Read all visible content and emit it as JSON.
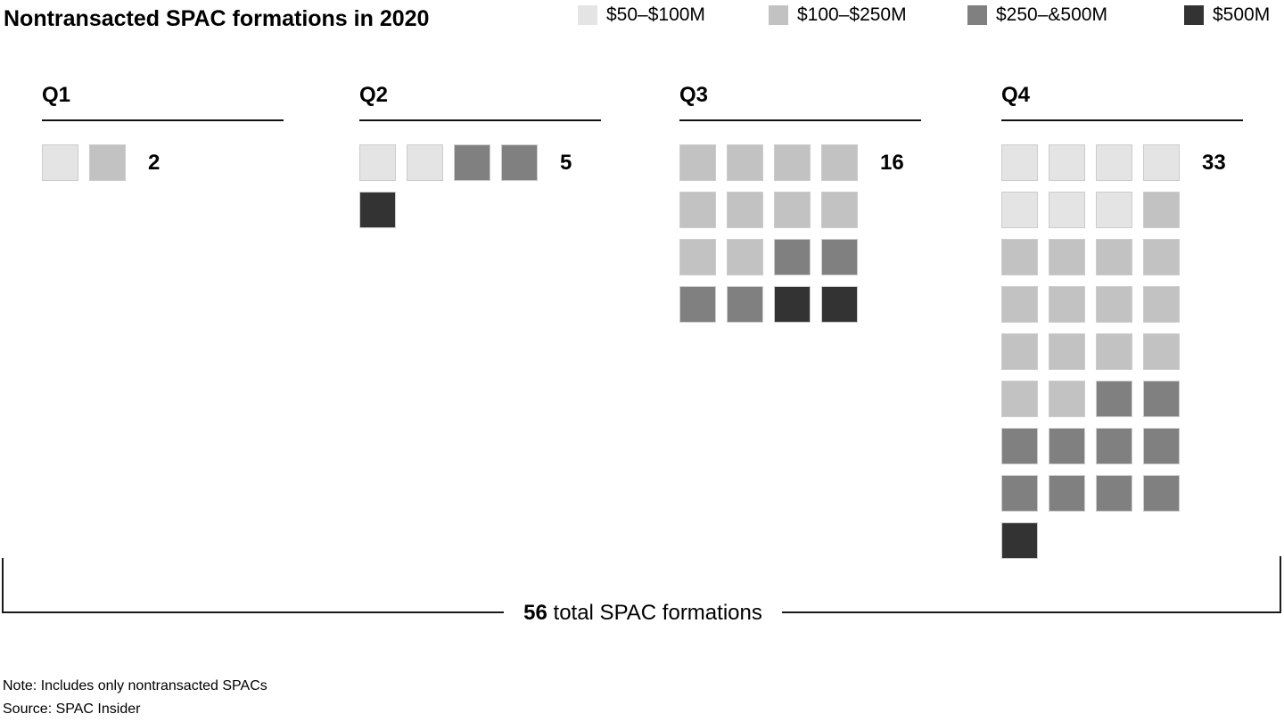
{
  "title": "Nontransacted SPAC formations in 2020",
  "chart_data": {
    "type": "waffle",
    "title": "Nontransacted SPAC formations in 2020",
    "legend_position": "top-right",
    "categories": [
      "$50–$100M",
      "$100–$250M",
      "$250–&500M",
      "$500M"
    ],
    "category_colors": [
      "#e4e4e4",
      "#c2c2c2",
      "#808080",
      "#333333"
    ],
    "columns_per_row": 4,
    "quarters": [
      {
        "label": "Q1",
        "count": "2",
        "cells": [
          0,
          1
        ],
        "breakdown": {
          "$50–$100M": 1,
          "$100–$250M": 1,
          "$250–&500M": 0,
          "$500M": 0
        }
      },
      {
        "label": "Q2",
        "count": "5",
        "cells": [
          0,
          0,
          2,
          2,
          3
        ],
        "breakdown": {
          "$50–$100M": 2,
          "$100–$250M": 0,
          "$250–&500M": 2,
          "$500M": 1
        }
      },
      {
        "label": "Q3",
        "count": "16",
        "cells": [
          1,
          1,
          1,
          1,
          1,
          1,
          1,
          1,
          1,
          1,
          2,
          2,
          2,
          2,
          3,
          3
        ],
        "breakdown": {
          "$50–$100M": 0,
          "$100–$250M": 10,
          "$250–&500M": 4,
          "$500M": 2
        }
      },
      {
        "label": "Q4",
        "count": "33",
        "cells": [
          0,
          0,
          0,
          0,
          0,
          0,
          0,
          1,
          1,
          1,
          1,
          1,
          1,
          1,
          1,
          1,
          1,
          1,
          1,
          1,
          1,
          1,
          2,
          2,
          2,
          2,
          2,
          2,
          2,
          2,
          2,
          2,
          3
        ],
        "breakdown": {
          "$50–$100M": 7,
          "$100–$250M": 15,
          "$250–&500M": 10,
          "$500M": 1
        }
      }
    ],
    "total": 56,
    "total_label_bold": "56",
    "total_label_rest": " total SPAC formations"
  },
  "footer": {
    "note": "Note: Includes only nontransacted SPACs",
    "source": "Source: SPAC Insider"
  }
}
